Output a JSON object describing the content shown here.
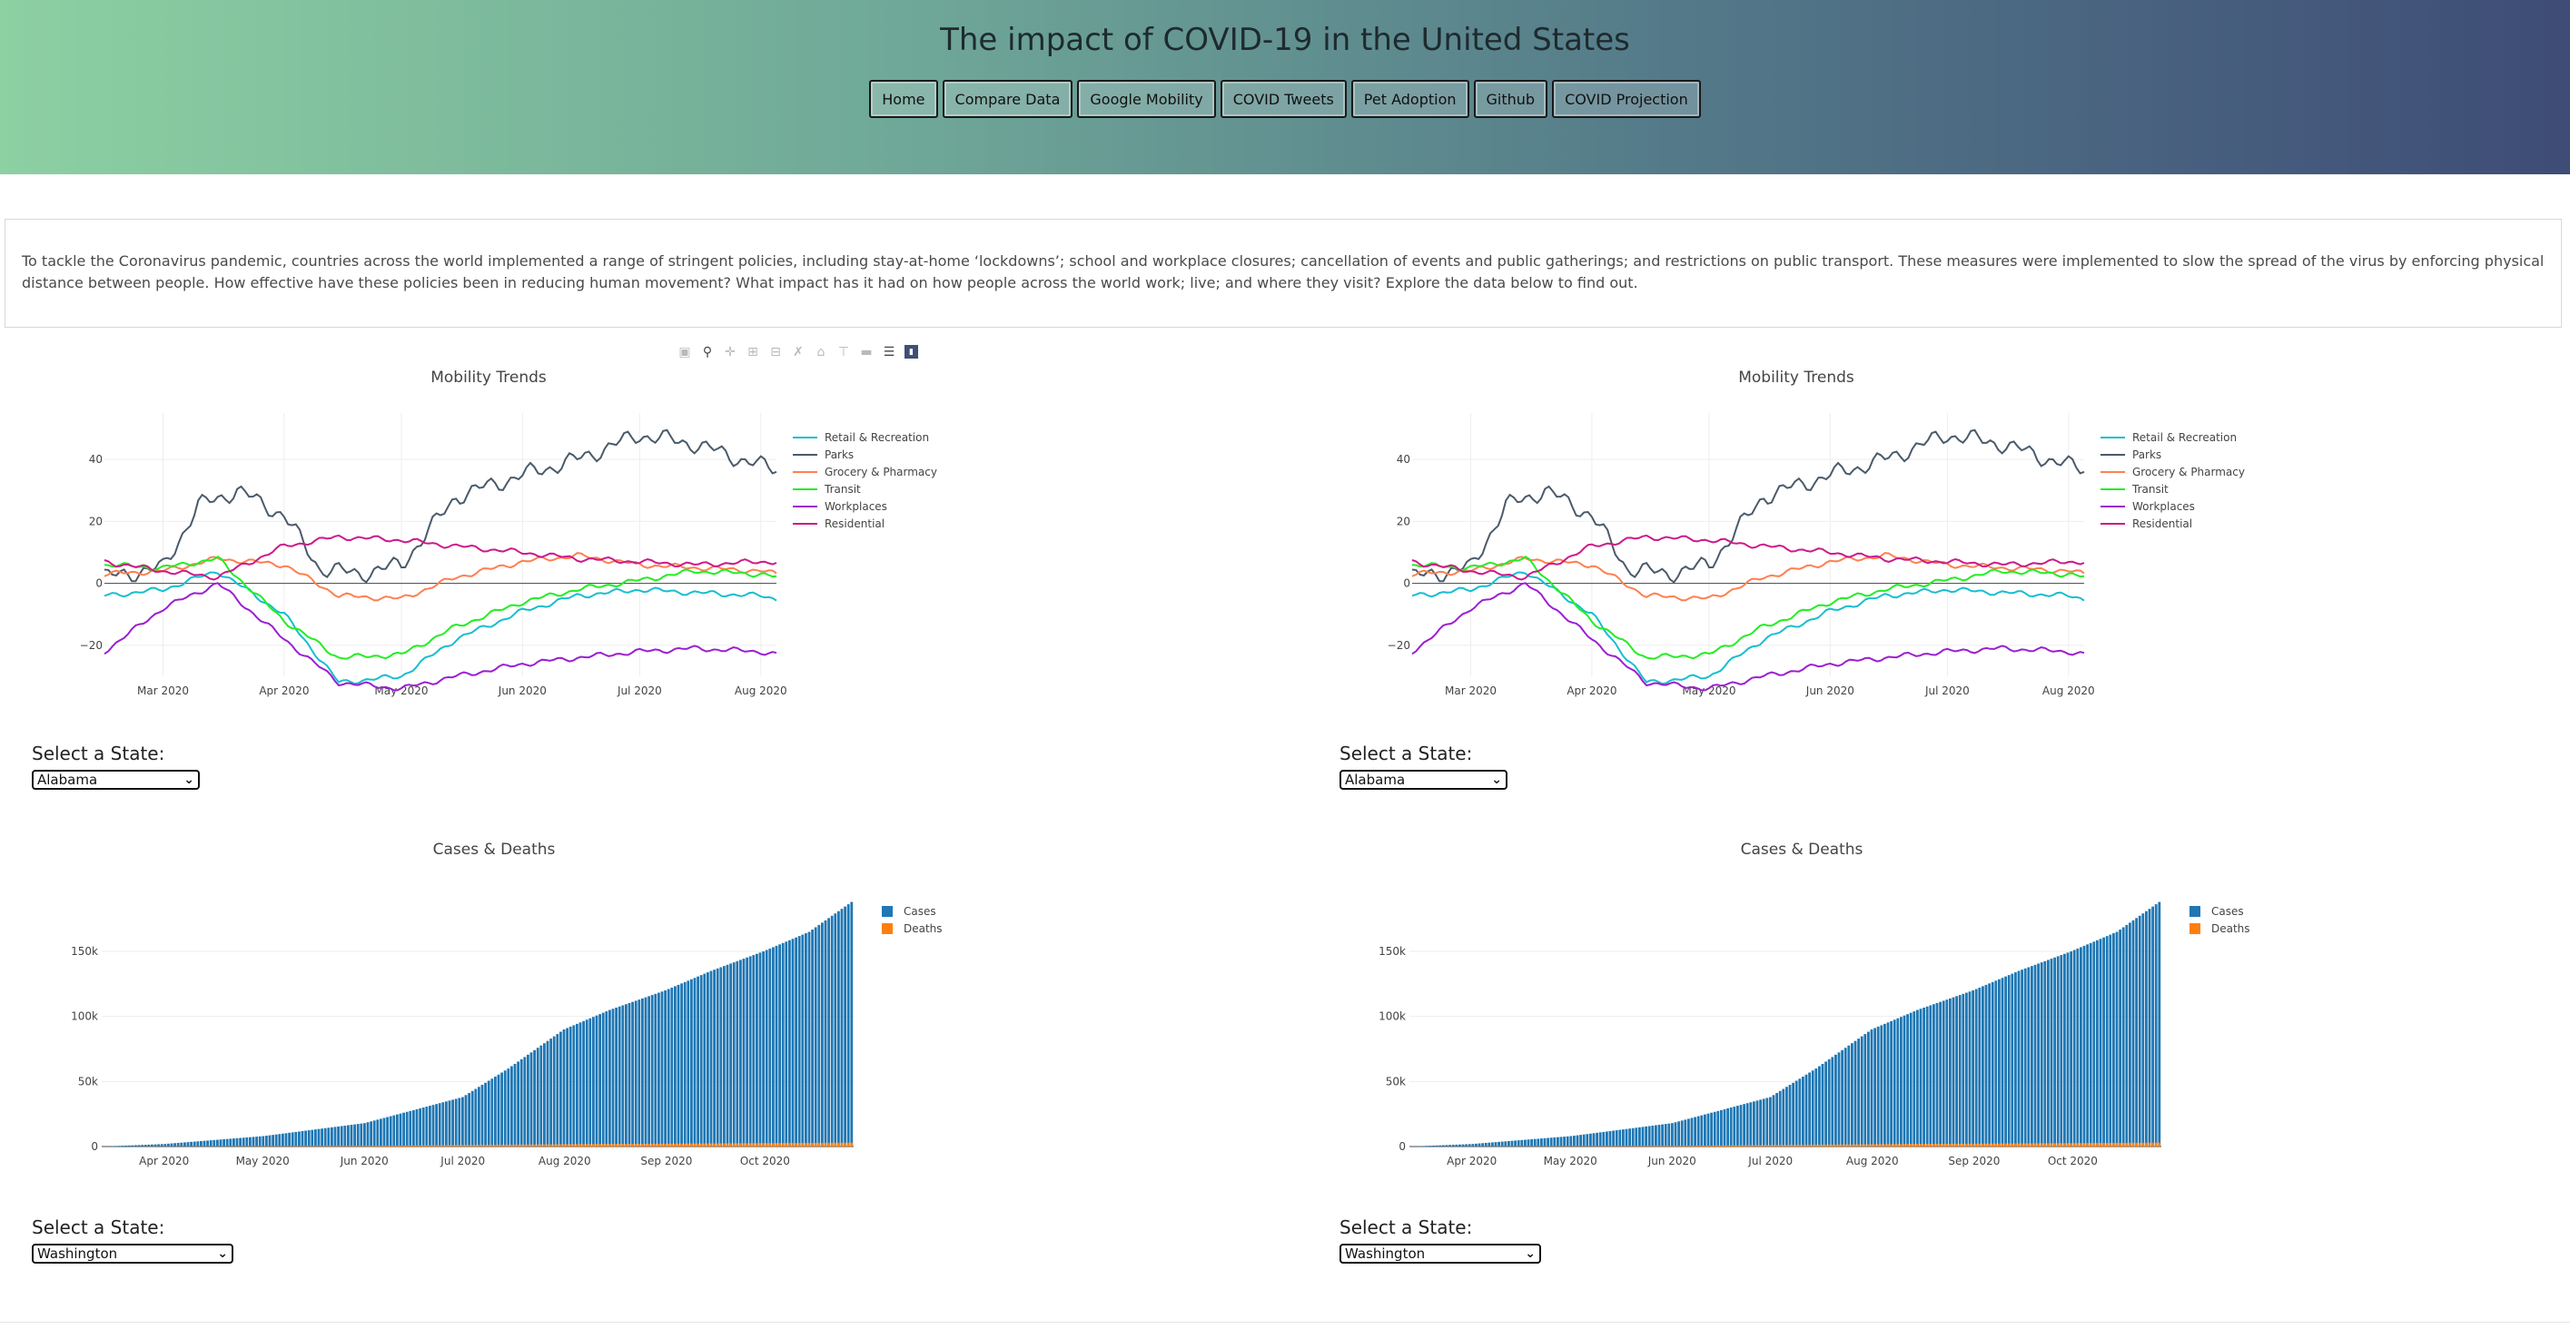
{
  "header": {
    "title": "The impact of COVID-19 in the United States",
    "nav": [
      "Home",
      "Compare Data",
      "Google Mobility",
      "COVID Tweets",
      "Pet Adoption",
      "Github",
      "COVID Projection"
    ]
  },
  "intro": {
    "text": "To tackle the Coronavirus pandemic, countries across the world implemented a range of stringent policies, including stay-at-home ‘lockdowns’; school and workplace closures; cancellation of events and public gatherings; and restrictions on public transport. These measures were implemented to slow the spread of the virus by enforcing physical distance between people. How effective have these policies been in reducing human movement? What impact has it had on how people across the world work; live; and where they visit? Explore the data below to find out."
  },
  "modebar": {
    "icons": [
      "camera-icon",
      "zoom-icon",
      "pan-icon",
      "zoom-in-icon",
      "zoom-out-icon",
      "autoscale-icon",
      "reset-axes-icon",
      "spike-lines-icon",
      "hover-closest-icon",
      "hover-compare-icon",
      "plotly-logo-icon"
    ]
  },
  "selectors": {
    "label": "Select a State:",
    "mobility_state": "Alabama",
    "cases_state": "Washington"
  },
  "chart_data": [
    {
      "type": "line",
      "title": "Mobility Trends",
      "x_ticks": [
        "Mar 2020",
        "Apr 2020",
        "May 2020",
        "Jun 2020",
        "Jul 2020",
        "Aug 2020"
      ],
      "y_ticks": [
        "40",
        "20",
        "0",
        "−20"
      ],
      "ylim": [
        -30,
        55
      ],
      "x_range": [
        "2020-02-15",
        "2020-08-05"
      ],
      "legend_position": "top-right",
      "series": [
        {
          "name": "Retail & Recreation",
          "color": "#17becf",
          "x": [
            "2020-02-15",
            "2020-03-01",
            "2020-03-15",
            "2020-04-01",
            "2020-04-15",
            "2020-05-01",
            "2020-05-15",
            "2020-06-01",
            "2020-06-15",
            "2020-07-01",
            "2020-07-15",
            "2020-08-01",
            "2020-08-05"
          ],
          "values": [
            -4,
            -2,
            4,
            -10,
            -32,
            -30,
            -18,
            -9,
            -4,
            -2,
            -3,
            -4,
            -5
          ]
        },
        {
          "name": "Parks",
          "color": "#4a5a6a",
          "x": [
            "2020-02-15",
            "2020-03-01",
            "2020-03-10",
            "2020-03-20",
            "2020-04-01",
            "2020-04-10",
            "2020-04-20",
            "2020-05-01",
            "2020-05-15",
            "2020-06-01",
            "2020-06-15",
            "2020-07-01",
            "2020-07-15",
            "2020-08-01",
            "2020-08-05"
          ],
          "values": [
            2,
            5,
            25,
            30,
            22,
            5,
            3,
            6,
            28,
            35,
            40,
            48,
            45,
            38,
            37
          ]
        },
        {
          "name": "Grocery & Pharmacy",
          "color": "#ff7f50",
          "x": [
            "2020-02-15",
            "2020-03-01",
            "2020-03-15",
            "2020-04-01",
            "2020-04-15",
            "2020-05-01",
            "2020-05-15",
            "2020-06-01",
            "2020-06-15",
            "2020-07-01",
            "2020-08-01",
            "2020-08-05"
          ],
          "values": [
            3,
            4,
            8,
            6,
            -4,
            -5,
            2,
            7,
            9,
            6,
            4,
            3
          ]
        },
        {
          "name": "Transit",
          "color": "#22ee22",
          "x": [
            "2020-02-15",
            "2020-03-01",
            "2020-03-15",
            "2020-04-01",
            "2020-04-15",
            "2020-05-01",
            "2020-05-15",
            "2020-06-01",
            "2020-06-15",
            "2020-07-01",
            "2020-07-15",
            "2020-08-01",
            "2020-08-05"
          ],
          "values": [
            6,
            5,
            8,
            -12,
            -24,
            -23,
            -14,
            -6,
            -2,
            1,
            4,
            3,
            2
          ]
        },
        {
          "name": "Workplaces",
          "color": "#9b1fd1",
          "x": [
            "2020-02-15",
            "2020-03-01",
            "2020-03-15",
            "2020-04-01",
            "2020-04-15",
            "2020-05-01",
            "2020-05-15",
            "2020-06-01",
            "2020-06-15",
            "2020-07-01",
            "2020-07-15",
            "2020-08-01",
            "2020-08-05"
          ],
          "values": [
            -22,
            -8,
            0,
            -18,
            -32,
            -34,
            -30,
            -26,
            -24,
            -22,
            -21,
            -22,
            -23
          ]
        },
        {
          "name": "Residential",
          "color": "#cc1a8a",
          "x": [
            "2020-02-15",
            "2020-03-01",
            "2020-03-15",
            "2020-04-01",
            "2020-04-15",
            "2020-05-01",
            "2020-05-15",
            "2020-06-01",
            "2020-06-15",
            "2020-07-01",
            "2020-07-15",
            "2020-08-01",
            "2020-08-05"
          ],
          "values": [
            7,
            4,
            2,
            12,
            15,
            14,
            12,
            10,
            8,
            7,
            6,
            7,
            7
          ]
        }
      ]
    },
    {
      "type": "bar",
      "title": "Cases & Deaths",
      "x_ticks": [
        "Apr 2020",
        "May 2020",
        "Jun 2020",
        "Jul 2020",
        "Aug 2020",
        "Sep 2020",
        "Oct 2020"
      ],
      "y_ticks": [
        "0",
        "50k",
        "100k",
        "150k"
      ],
      "ylim": [
        0,
        187000
      ],
      "x_range": [
        "2020-03-13",
        "2020-10-28"
      ],
      "legend_position": "top-right",
      "series": [
        {
          "name": "Cases",
          "color": "#1f77b4",
          "x": [
            "2020-03-13",
            "2020-04-01",
            "2020-05-01",
            "2020-06-01",
            "2020-07-01",
            "2020-07-15",
            "2020-08-01",
            "2020-08-15",
            "2020-09-01",
            "2020-09-15",
            "2020-10-01",
            "2020-10-15",
            "2020-10-28"
          ],
          "values": [
            0,
            2000,
            8000,
            18000,
            38000,
            60000,
            90000,
            105000,
            120000,
            135000,
            150000,
            165000,
            188000
          ]
        },
        {
          "name": "Deaths",
          "color": "#ff7f0e",
          "x": [
            "2020-03-13",
            "2020-06-01",
            "2020-08-01",
            "2020-10-28"
          ],
          "values": [
            0,
            500,
            1800,
            3000
          ]
        }
      ]
    }
  ]
}
